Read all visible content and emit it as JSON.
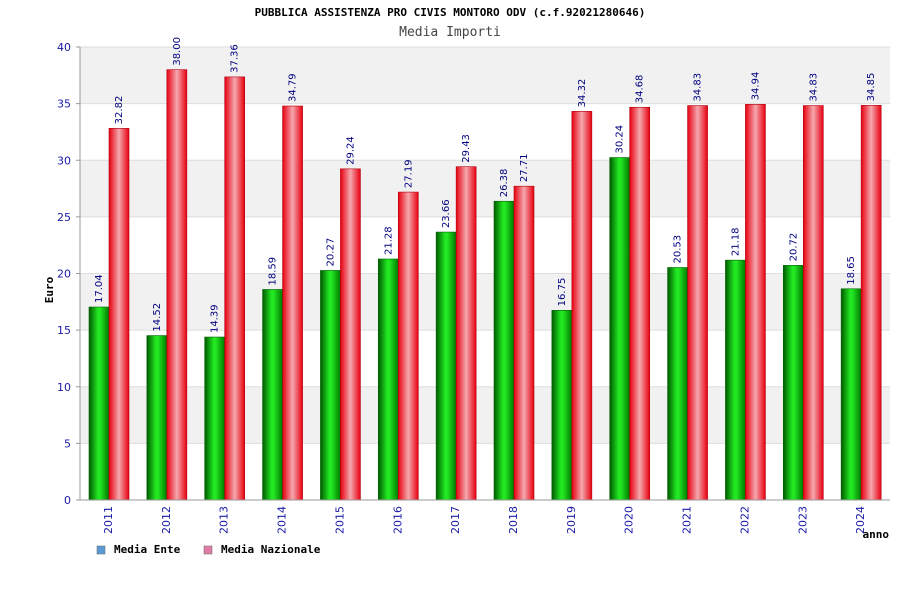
{
  "chart_data": {
    "type": "bar",
    "title": "PUBBLICA ASSISTENZA PRO CIVIS MONTORO ODV (c.f.92021280646)",
    "subtitle": "Media Importi",
    "xlabel": "anno",
    "ylabel": "Euro",
    "ylim": [
      0,
      40
    ],
    "yticks": [
      0,
      5,
      10,
      15,
      20,
      25,
      30,
      35,
      40
    ],
    "categories": [
      "2011",
      "2012",
      "2013",
      "2014",
      "2015",
      "2016",
      "2017",
      "2018",
      "2019",
      "2020",
      "2021",
      "2022",
      "2023",
      "2024"
    ],
    "series": [
      {
        "name": "Media Ente",
        "color": "#00b000",
        "legend_color": "#5b9bd5",
        "values": [
          17.04,
          14.52,
          14.39,
          18.59,
          20.27,
          21.28,
          23.66,
          26.38,
          16.75,
          30.24,
          20.53,
          21.18,
          20.72,
          18.65
        ],
        "labels": [
          "17.04",
          "14.52",
          "14.39",
          "18.59",
          "20.27",
          "21.28",
          "23.66",
          "26.38",
          "16.75",
          "30.24",
          "20.53",
          "21.18",
          "20.72",
          "18.65"
        ]
      },
      {
        "name": "Media Nazionale",
        "color": "#e8101c",
        "legend_color": "#e37ba8",
        "values": [
          32.82,
          38.0,
          37.36,
          34.79,
          29.24,
          27.19,
          29.43,
          27.71,
          34.32,
          34.68,
          34.83,
          34.94,
          34.83,
          34.85
        ],
        "labels": [
          "32.82",
          "38.00",
          "37.36",
          "34.79",
          "29.24",
          "27.19",
          "29.43",
          "27.71",
          "34.32",
          "34.68",
          "34.83",
          "34.94",
          "34.83",
          "34.85"
        ]
      }
    ],
    "legend_position": "bottom-left"
  }
}
